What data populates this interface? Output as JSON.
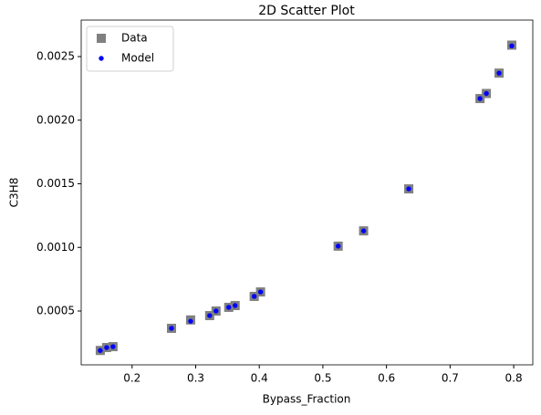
{
  "chart_data": {
    "type": "scatter",
    "title": "2D Scatter Plot",
    "x_label": "Bypass_Fraction",
    "y_label": "C3H8",
    "x": [
      0.15,
      0.16,
      0.17,
      0.262,
      0.292,
      0.322,
      0.332,
      0.352,
      0.362,
      0.392,
      0.402,
      0.524,
      0.564,
      0.635,
      0.747,
      0.757,
      0.777,
      0.797
    ],
    "series": [
      {
        "name": "Data",
        "color": "#808080",
        "marker": "square",
        "values": [
          0.00019,
          0.000213,
          0.00022,
          0.000364,
          0.00043,
          0.000464,
          0.0005,
          0.000529,
          0.000543,
          0.000615,
          0.00065,
          0.00101,
          0.00113,
          0.00146,
          0.00217,
          0.00221,
          0.00237,
          0.00259
        ]
      },
      {
        "name": "Model",
        "color": "#0000ff",
        "marker": "circle",
        "values": [
          0.00019,
          0.000213,
          0.00022,
          0.000364,
          0.00042,
          0.000464,
          0.0005,
          0.000529,
          0.000543,
          0.000615,
          0.00065,
          0.00101,
          0.00113,
          0.00146,
          0.00217,
          0.00221,
          0.00237,
          0.002584
        ]
      }
    ],
    "xlim": [
      0.12,
      0.83
    ],
    "ylim": [
      7.7e-05,
      0.002787
    ],
    "xticks": [
      0.2,
      0.3,
      0.4,
      0.5,
      0.6,
      0.7,
      0.8
    ],
    "yticks": [
      0.0005,
      {
        "value": 0.001,
        "label": "0.0010"
      },
      0.0015,
      {
        "value": 0.002,
        "label": "0.0020"
      },
      0.0025
    ],
    "legend": "upper left"
  }
}
